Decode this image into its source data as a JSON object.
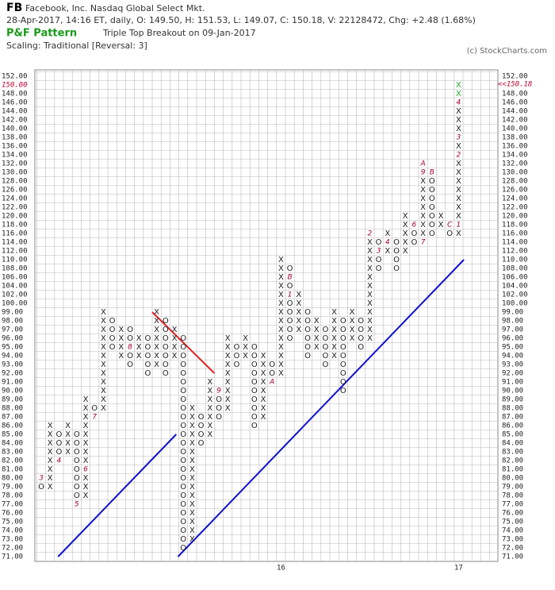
{
  "chart_data": {
    "type": "pointfigure",
    "symbol": "FB",
    "company": "Facebook, Inc.  Nasdaq Global Select Mkt.",
    "quote": "28-Apr-2017, 14:16 ET, daily, O: 149.50, H: 151.53, L: 149.07, C: 150.18, V: 22128472, Chg: +2.48 (1.68%)",
    "pattern_label": "P&F Pattern",
    "pattern": "Triple Top Breakout on 09-Jan-2017",
    "scaling": "Scaling: Traditional [Reversal: 3]",
    "copyright": "(c) StockCharts.com",
    "yticks": [
      {
        "value": 71,
        "label": "71.00"
      },
      {
        "value": 72,
        "label": "72.00"
      },
      {
        "value": 73,
        "label": "73.00"
      },
      {
        "value": 74,
        "label": "74.00"
      },
      {
        "value": 75,
        "label": "75.00"
      },
      {
        "value": 76,
        "label": "76.00"
      },
      {
        "value": 77,
        "label": "77.00"
      },
      {
        "value": 78,
        "label": "78.00"
      },
      {
        "value": 79,
        "label": "79.00"
      },
      {
        "value": 80,
        "label": "80.00"
      },
      {
        "value": 81,
        "label": "81.00"
      },
      {
        "value": 82,
        "label": "82.00"
      },
      {
        "value": 83,
        "label": "83.00"
      },
      {
        "value": 84,
        "label": "84.00"
      },
      {
        "value": 85,
        "label": "85.00"
      },
      {
        "value": 86,
        "label": "86.00"
      },
      {
        "value": 87,
        "label": "87.00"
      },
      {
        "value": 88,
        "label": "88.00"
      },
      {
        "value": 89,
        "label": "89.00"
      },
      {
        "value": 90,
        "label": "90.00"
      },
      {
        "value": 91,
        "label": "91.00"
      },
      {
        "value": 92,
        "label": "92.00"
      },
      {
        "value": 93,
        "label": "93.00"
      },
      {
        "value": 94,
        "label": "94.00"
      },
      {
        "value": 95,
        "label": "95.00"
      },
      {
        "value": 96,
        "label": "96.00"
      },
      {
        "value": 97,
        "label": "97.00"
      },
      {
        "value": 98,
        "label": "98.00"
      },
      {
        "value": 99,
        "label": "99.00"
      },
      {
        "value": 100,
        "label": "100.00"
      },
      {
        "value": 102,
        "label": "102.00"
      },
      {
        "value": 104,
        "label": "104.00"
      },
      {
        "value": 106,
        "label": "106.00"
      },
      {
        "value": 108,
        "label": "108.00"
      },
      {
        "value": 110,
        "label": "110.00"
      },
      {
        "value": 112,
        "label": "112.00"
      },
      {
        "value": 114,
        "label": "114.00"
      },
      {
        "value": 116,
        "label": "116.00"
      },
      {
        "value": 118,
        "label": "118.00"
      },
      {
        "value": 120,
        "label": "120.00"
      },
      {
        "value": 122,
        "label": "122.00"
      },
      {
        "value": 124,
        "label": "124.00"
      },
      {
        "value": 126,
        "label": "126.00"
      },
      {
        "value": 128,
        "label": "128.00"
      },
      {
        "value": 130,
        "label": "130.00"
      },
      {
        "value": 132,
        "label": "132.00"
      },
      {
        "value": 134,
        "label": "134.00"
      },
      {
        "value": 136,
        "label": "136.00"
      },
      {
        "value": 138,
        "label": "138.00"
      },
      {
        "value": 140,
        "label": "140.00"
      },
      {
        "value": 142,
        "label": "142.00"
      },
      {
        "value": 144,
        "label": "144.00"
      },
      {
        "value": 146,
        "label": "146.00"
      },
      {
        "value": 148,
        "label": "148.00"
      },
      {
        "value": 150,
        "label": "150.00"
      },
      {
        "value": 152,
        "label": "152.00"
      }
    ],
    "highlight_tick": 150,
    "highlight_color": "#c00030",
    "current_price": {
      "value": 150.18,
      "label": "<<150.18"
    },
    "x_labels": [
      {
        "column": 27,
        "label": "16"
      },
      {
        "column": 47,
        "label": "17"
      }
    ],
    "marker_color": "#a0003a",
    "recent_color": "#22a822",
    "columns": [
      {
        "type": "O",
        "low": 79,
        "high": 80,
        "marks": [
          {
            "value": 80,
            "label": "3"
          }
        ]
      },
      {
        "type": "X",
        "low": 79,
        "high": 86,
        "marks": []
      },
      {
        "type": "O",
        "low": 82,
        "high": 85,
        "marks": [
          {
            "value": 82,
            "label": "4"
          }
        ]
      },
      {
        "type": "X",
        "low": 83,
        "high": 86,
        "marks": []
      },
      {
        "type": "O",
        "low": 77,
        "high": 85,
        "marks": [
          {
            "value": 77,
            "label": "5"
          }
        ]
      },
      {
        "type": "X",
        "low": 78,
        "high": 89,
        "marks": [
          {
            "value": 81,
            "label": "6"
          }
        ]
      },
      {
        "type": "O",
        "low": 87,
        "high": 88,
        "marks": [
          {
            "value": 87,
            "label": "7"
          }
        ]
      },
      {
        "type": "X",
        "low": 88,
        "high": 99,
        "marks": []
      },
      {
        "type": "O",
        "low": 95,
        "high": 98,
        "marks": []
      },
      {
        "type": "X",
        "low": 94,
        "high": 97,
        "marks": []
      },
      {
        "type": "O",
        "low": 93,
        "high": 97,
        "marks": [
          {
            "value": 95,
            "label": "8"
          }
        ]
      },
      {
        "type": "X",
        "low": 94,
        "high": 96,
        "marks": []
      },
      {
        "type": "O",
        "low": 92,
        "high": 96,
        "marks": []
      },
      {
        "type": "X",
        "low": 93,
        "high": 99,
        "marks": []
      },
      {
        "type": "O",
        "low": 92,
        "high": 98,
        "marks": []
      },
      {
        "type": "X",
        "low": 94,
        "high": 97,
        "marks": []
      },
      {
        "type": "O",
        "low": 72,
        "high": 96,
        "marks": []
      },
      {
        "type": "X",
        "low": 73,
        "high": 88,
        "marks": []
      },
      {
        "type": "O",
        "low": 84,
        "high": 87,
        "marks": []
      },
      {
        "type": "X",
        "low": 85,
        "high": 91,
        "marks": []
      },
      {
        "type": "O",
        "low": 87,
        "high": 90,
        "marks": [
          {
            "value": 90,
            "label": "9"
          }
        ]
      },
      {
        "type": "X",
        "low": 88,
        "high": 96,
        "marks": []
      },
      {
        "type": "O",
        "low": 93,
        "high": 95,
        "marks": []
      },
      {
        "type": "X",
        "low": 94,
        "high": 96,
        "marks": []
      },
      {
        "type": "O",
        "low": 86,
        "high": 95,
        "marks": []
      },
      {
        "type": "X",
        "low": 87,
        "high": 94,
        "marks": []
      },
      {
        "type": "O",
        "low": 91,
        "high": 93,
        "marks": [
          {
            "value": 91,
            "label": "A"
          }
        ]
      },
      {
        "type": "X",
        "low": 92,
        "high": 110,
        "marks": []
      },
      {
        "type": "O",
        "low": 96,
        "high": 108,
        "marks": [
          {
            "value": 106,
            "label": "B"
          },
          {
            "value": 102,
            "label": "1"
          }
        ]
      },
      {
        "type": "X",
        "low": 97,
        "high": 102,
        "marks": []
      },
      {
        "type": "O",
        "low": 94,
        "high": 99,
        "marks": []
      },
      {
        "type": "X",
        "low": 95,
        "high": 98,
        "marks": []
      },
      {
        "type": "O",
        "low": 93,
        "high": 97,
        "marks": []
      },
      {
        "type": "X",
        "low": 94,
        "high": 99,
        "marks": []
      },
      {
        "type": "O",
        "low": 90,
        "high": 98,
        "marks": []
      },
      {
        "type": "X",
        "low": 96,
        "high": 99,
        "marks": []
      },
      {
        "type": "O",
        "low": 95,
        "high": 98,
        "marks": []
      },
      {
        "type": "X",
        "low": 96,
        "high": 116,
        "marks": [
          {
            "value": 116,
            "label": "2"
          }
        ]
      },
      {
        "type": "O",
        "low": 108,
        "high": 114,
        "marks": [
          {
            "value": 112,
            "label": "3"
          }
        ]
      },
      {
        "type": "X",
        "low": 112,
        "high": 116,
        "marks": [
          {
            "value": 114,
            "label": "4"
          }
        ]
      },
      {
        "type": "O",
        "low": 108,
        "high": 114,
        "marks": []
      },
      {
        "type": "X",
        "low": 112,
        "high": 120,
        "marks": []
      },
      {
        "type": "O",
        "low": 114,
        "high": 118,
        "marks": [
          {
            "value": 118,
            "label": "6"
          }
        ]
      },
      {
        "type": "X",
        "low": 114,
        "high": 132,
        "marks": [
          {
            "value": 114,
            "label": "7"
          },
          {
            "value": 130,
            "label": "9"
          },
          {
            "value": 132,
            "label": "A"
          }
        ]
      },
      {
        "type": "O",
        "low": 116,
        "high": 130,
        "marks": [
          {
            "value": 130,
            "label": "B"
          }
        ]
      },
      {
        "type": "X",
        "low": 118,
        "high": 120,
        "marks": []
      },
      {
        "type": "O",
        "low": 116,
        "high": 118,
        "marks": [
          {
            "value": 118,
            "label": "C"
          }
        ]
      },
      {
        "type": "X",
        "low": 116,
        "high": 150,
        "marks": [
          {
            "value": 118,
            "label": "1"
          },
          {
            "value": 134,
            "label": "2"
          },
          {
            "value": 138,
            "label": "3"
          },
          {
            "value": 146,
            "label": "4"
          }
        ],
        "recent_from": 148
      }
    ],
    "trendlines": [
      {
        "color": "#1010d0",
        "columns": [
          1.9,
          15.2
        ],
        "values": [
          71,
          85
        ]
      },
      {
        "color": "#1010d0",
        "columns": [
          15.4,
          47.6
        ],
        "values": [
          71,
          110
        ]
      },
      {
        "color": "#e02020",
        "columns": [
          12.5,
          19.5
        ],
        "values": [
          99,
          92
        ]
      }
    ]
  }
}
